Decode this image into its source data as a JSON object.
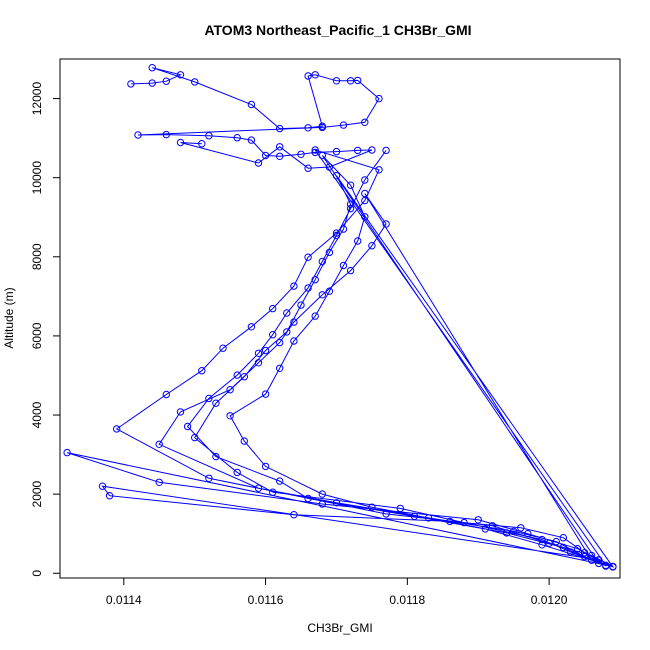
{
  "chart_data": {
    "type": "line",
    "title": "ATOM3 Northeast_Pacific_1 CH3Br_GMI",
    "xlabel": "CH3Br_GMI",
    "ylabel": "Altitude (m)",
    "xlim": [
      0.01131,
      0.0121
    ],
    "ylim": [
      -120,
      13000
    ],
    "xticks": [
      0.0114,
      0.0116,
      0.0118,
      0.012
    ],
    "xtick_labels": [
      "0.0114",
      "0.0116",
      "0.0118",
      "0.0120"
    ],
    "yticks": [
      0,
      2000,
      4000,
      6000,
      8000,
      10000,
      12000
    ],
    "ytick_labels": [
      "0",
      "2000",
      "4000",
      "6000",
      "8000",
      "10000",
      "12000"
    ],
    "grid": false,
    "series": [
      {
        "color": "#0000ff",
        "marker": "open-circle",
        "points": [
          [
            0.01208,
            180
          ],
          [
            0.01207,
            330
          ],
          [
            0.01205,
            520
          ],
          [
            0.01202,
            900
          ],
          [
            0.01196,
            1150
          ],
          [
            0.01186,
            1310
          ],
          [
            0.01164,
            1480
          ],
          [
            0.01138,
            1960
          ],
          [
            0.01137,
            2200
          ],
          [
            0.01207,
            340
          ],
          [
            0.01204,
            620
          ],
          [
            0.01197,
            1000
          ],
          [
            0.0119,
            1350
          ],
          [
            0.01168,
            1750
          ],
          [
            0.01145,
            2300
          ],
          [
            0.01132,
            3050
          ],
          [
            0.01209,
            170
          ],
          [
            0.01206,
            450
          ],
          [
            0.012,
            760
          ],
          [
            0.01192,
            1200
          ],
          [
            0.01177,
            1500
          ],
          [
            0.01152,
            2400
          ],
          [
            0.01139,
            3650
          ],
          [
            0.01146,
            4520
          ],
          [
            0.01151,
            5120
          ],
          [
            0.01154,
            5690
          ],
          [
            0.01158,
            6230
          ],
          [
            0.01161,
            6690
          ],
          [
            0.01164,
            7260
          ],
          [
            0.01166,
            7990
          ],
          [
            0.0117,
            8600
          ],
          [
            0.01174,
            9420
          ],
          [
            0.01176,
            10200
          ],
          [
            0.01167,
            10700
          ],
          [
            0.01208,
            200
          ],
          [
            0.01203,
            540
          ],
          [
            0.01199,
            850
          ],
          [
            0.01188,
            1280
          ],
          [
            0.01179,
            1640
          ],
          [
            0.01161,
            2050
          ],
          [
            0.01156,
            2550
          ],
          [
            0.0115,
            3430
          ],
          [
            0.01153,
            4300
          ],
          [
            0.01157,
            4970
          ],
          [
            0.0116,
            5630
          ],
          [
            0.01163,
            6100
          ],
          [
            0.01165,
            6780
          ],
          [
            0.01167,
            7420
          ],
          [
            0.01169,
            8110
          ],
          [
            0.01171,
            8700
          ],
          [
            0.01172,
            9330
          ],
          [
            0.0117,
            10050
          ],
          [
            0.01209,
            160
          ],
          [
            0.01205,
            420
          ],
          [
            0.01201,
            800
          ],
          [
            0.01195,
            1060
          ],
          [
            0.01183,
            1400
          ],
          [
            0.0117,
            1780
          ],
          [
            0.01159,
            2150
          ],
          [
            0.01145,
            3260
          ],
          [
            0.01148,
            4080
          ],
          [
            0.01155,
            4640
          ],
          [
            0.01159,
            5320
          ],
          [
            0.01162,
            5830
          ],
          [
            0.01164,
            6350
          ],
          [
            0.01168,
            7040
          ],
          [
            0.01172,
            7650
          ],
          [
            0.01175,
            8280
          ],
          [
            0.01177,
            8830
          ],
          [
            0.01174,
            9600
          ],
          [
            0.01206,
            330
          ],
          [
            0.01199,
            720
          ],
          [
            0.01191,
            1120
          ],
          [
            0.01175,
            1670
          ],
          [
            0.01168,
            2000
          ],
          [
            0.0116,
            2700
          ],
          [
            0.01157,
            3340
          ],
          [
            0.01155,
            3980
          ],
          [
            0.0116,
            4530
          ],
          [
            0.01162,
            5180
          ],
          [
            0.01164,
            5870
          ],
          [
            0.01167,
            6500
          ],
          [
            0.01169,
            7130
          ],
          [
            0.01171,
            7780
          ],
          [
            0.01173,
            8400
          ],
          [
            0.01174,
            9010
          ],
          [
            0.01172,
            9810
          ],
          [
            0.01168,
            10560
          ],
          [
            0.01207,
            250
          ],
          [
            0.01202,
            650
          ],
          [
            0.01194,
            1020
          ],
          [
            0.01181,
            1440
          ],
          [
            0.01166,
            1890
          ],
          [
            0.01162,
            2330
          ],
          [
            0.01153,
            2950
          ],
          [
            0.01149,
            3710
          ],
          [
            0.01152,
            4420
          ],
          [
            0.01156,
            5010
          ],
          [
            0.01159,
            5560
          ],
          [
            0.01161,
            6030
          ],
          [
            0.01163,
            6580
          ],
          [
            0.01166,
            7210
          ],
          [
            0.01168,
            7880
          ],
          [
            0.0117,
            8540
          ],
          [
            0.01172,
            9220
          ],
          [
            0.01174,
            9940
          ],
          [
            0.01177,
            10690
          ]
        ]
      }
    ],
    "flight_legs": [
      [
        0.01141,
        12370
      ],
      [
        0.01144,
        12390
      ],
      [
        0.01146,
        12440
      ],
      [
        0.01148,
        12600
      ],
      [
        0.01144,
        12780
      ],
      [
        0.0115,
        12420
      ],
      [
        0.01158,
        11850
      ],
      [
        0.01162,
        11240
      ],
      [
        0.01166,
        11260
      ],
      [
        0.01168,
        11300
      ],
      [
        0.01166,
        12570
      ],
      [
        0.01167,
        12600
      ],
      [
        0.0117,
        12450
      ],
      [
        0.01172,
        12450
      ],
      [
        0.01173,
        12460
      ],
      [
        0.01176,
        12000
      ],
      [
        0.01174,
        11400
      ],
      [
        0.01171,
        11330
      ],
      [
        0.01168,
        11270
      ],
      [
        0.01142,
        11080
      ],
      [
        0.01146,
        11090
      ],
      [
        0.01152,
        11060
      ],
      [
        0.01156,
        11010
      ],
      [
        0.01158,
        10950
      ],
      [
        0.0116,
        10560
      ],
      [
        0.01162,
        10540
      ],
      [
        0.01165,
        10590
      ],
      [
        0.01167,
        10640
      ],
      [
        0.0117,
        10660
      ],
      [
        0.01173,
        10690
      ],
      [
        0.01175,
        10700
      ],
      [
        0.01169,
        10270
      ],
      [
        0.01166,
        10240
      ],
      [
        0.01162,
        10780
      ],
      [
        0.01159,
        10370
      ],
      [
        0.01148,
        10890
      ],
      [
        0.01151,
        10860
      ]
    ]
  }
}
